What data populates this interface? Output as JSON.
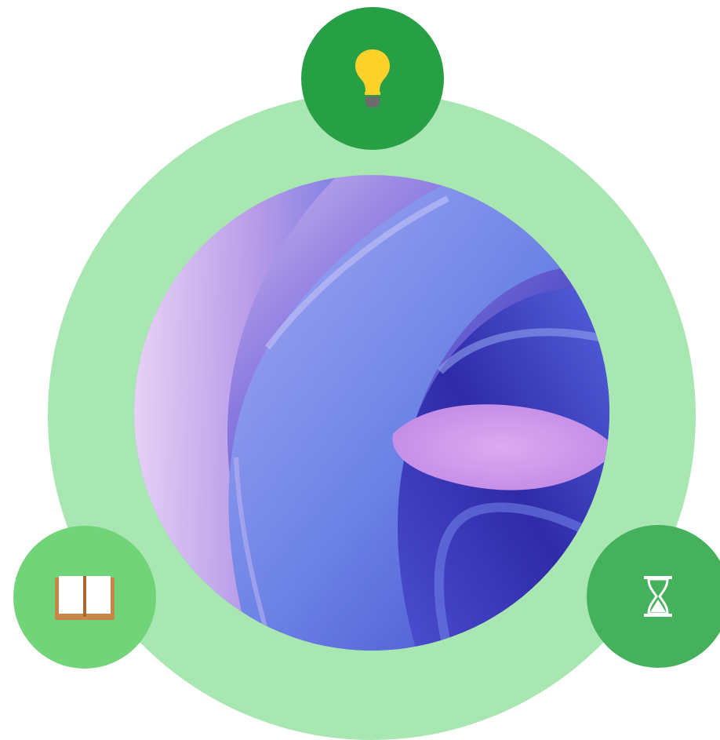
{
  "colors": {
    "outer_ring": "#a8e6b2",
    "node_top": "#27a045",
    "node_left": "#72d479",
    "node_right": "#46b15c",
    "bulb": "#fcd12a",
    "bulb_base": "#6c6c6c",
    "book_cover": "#c9864a",
    "hourglass": "#ffffff"
  },
  "nodes": [
    {
      "position": "top",
      "icon": "lightbulb-icon"
    },
    {
      "position": "bottom-left",
      "icon": "book-icon"
    },
    {
      "position": "bottom-right",
      "icon": "hourglass-icon"
    }
  ],
  "center_image": {
    "description_icon": "abstract-swirl-image"
  }
}
